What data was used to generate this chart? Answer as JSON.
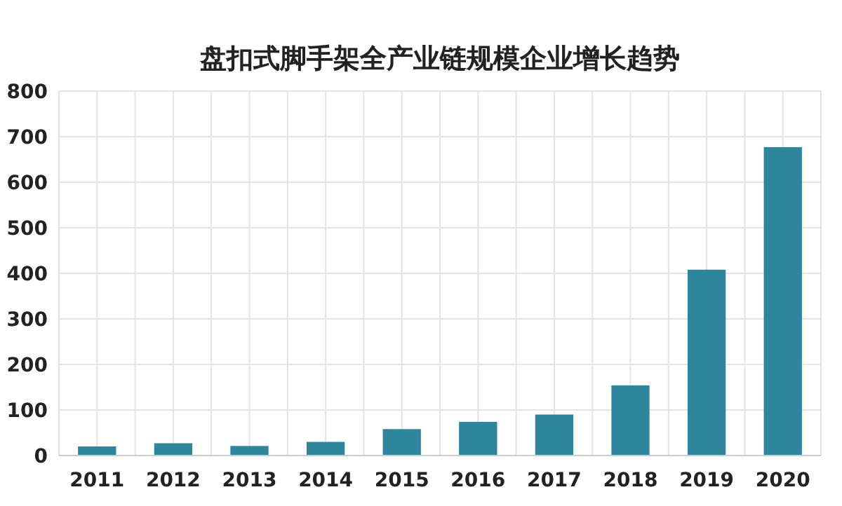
{
  "chart_data": {
    "type": "bar",
    "title": "盘扣式脚手架全产业链规模企业增长趋势",
    "categories": [
      "2011",
      "2012",
      "2013",
      "2014",
      "2015",
      "2016",
      "2017",
      "2018",
      "2019",
      "2020"
    ],
    "values": [
      20,
      27,
      21,
      30,
      58,
      74,
      90,
      154,
      408,
      677
    ],
    "color": "#2e869c",
    "ylim": [
      0,
      800
    ],
    "yticks": [
      0,
      100,
      200,
      300,
      400,
      500,
      600,
      700,
      800
    ],
    "grid": true
  }
}
